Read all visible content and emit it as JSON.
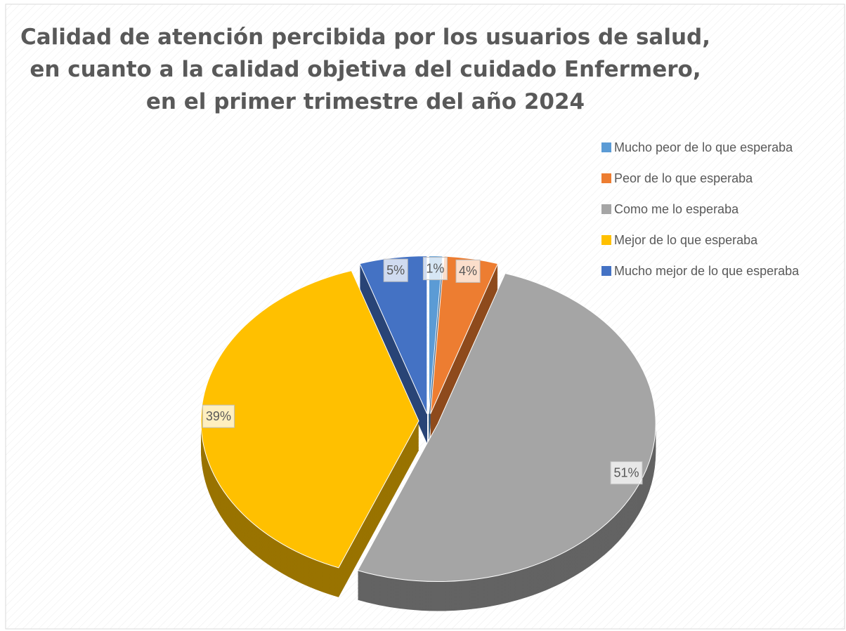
{
  "chart_data": {
    "type": "pie",
    "title": "Calidad de atención percibida por los usuarios de salud, en cuanto a la calidad objetiva del cuidado Enfermero, en el primer trimestre del año 2024",
    "categories": [
      "Mucho peor de lo que esperaba",
      "Peor de lo que esperaba",
      "Como me lo esperaba",
      "Mejor de lo que esperaba",
      "Mucho mejor de lo que esperaba"
    ],
    "values": [
      1,
      4,
      51,
      39,
      5
    ],
    "value_labels": [
      "1%",
      "4%",
      "51%",
      "39%",
      "5%"
    ],
    "colors": [
      "#5b9bd5",
      "#ed7d31",
      "#a5a5a5",
      "#ffc000",
      "#4472c4"
    ],
    "legend": "right"
  }
}
